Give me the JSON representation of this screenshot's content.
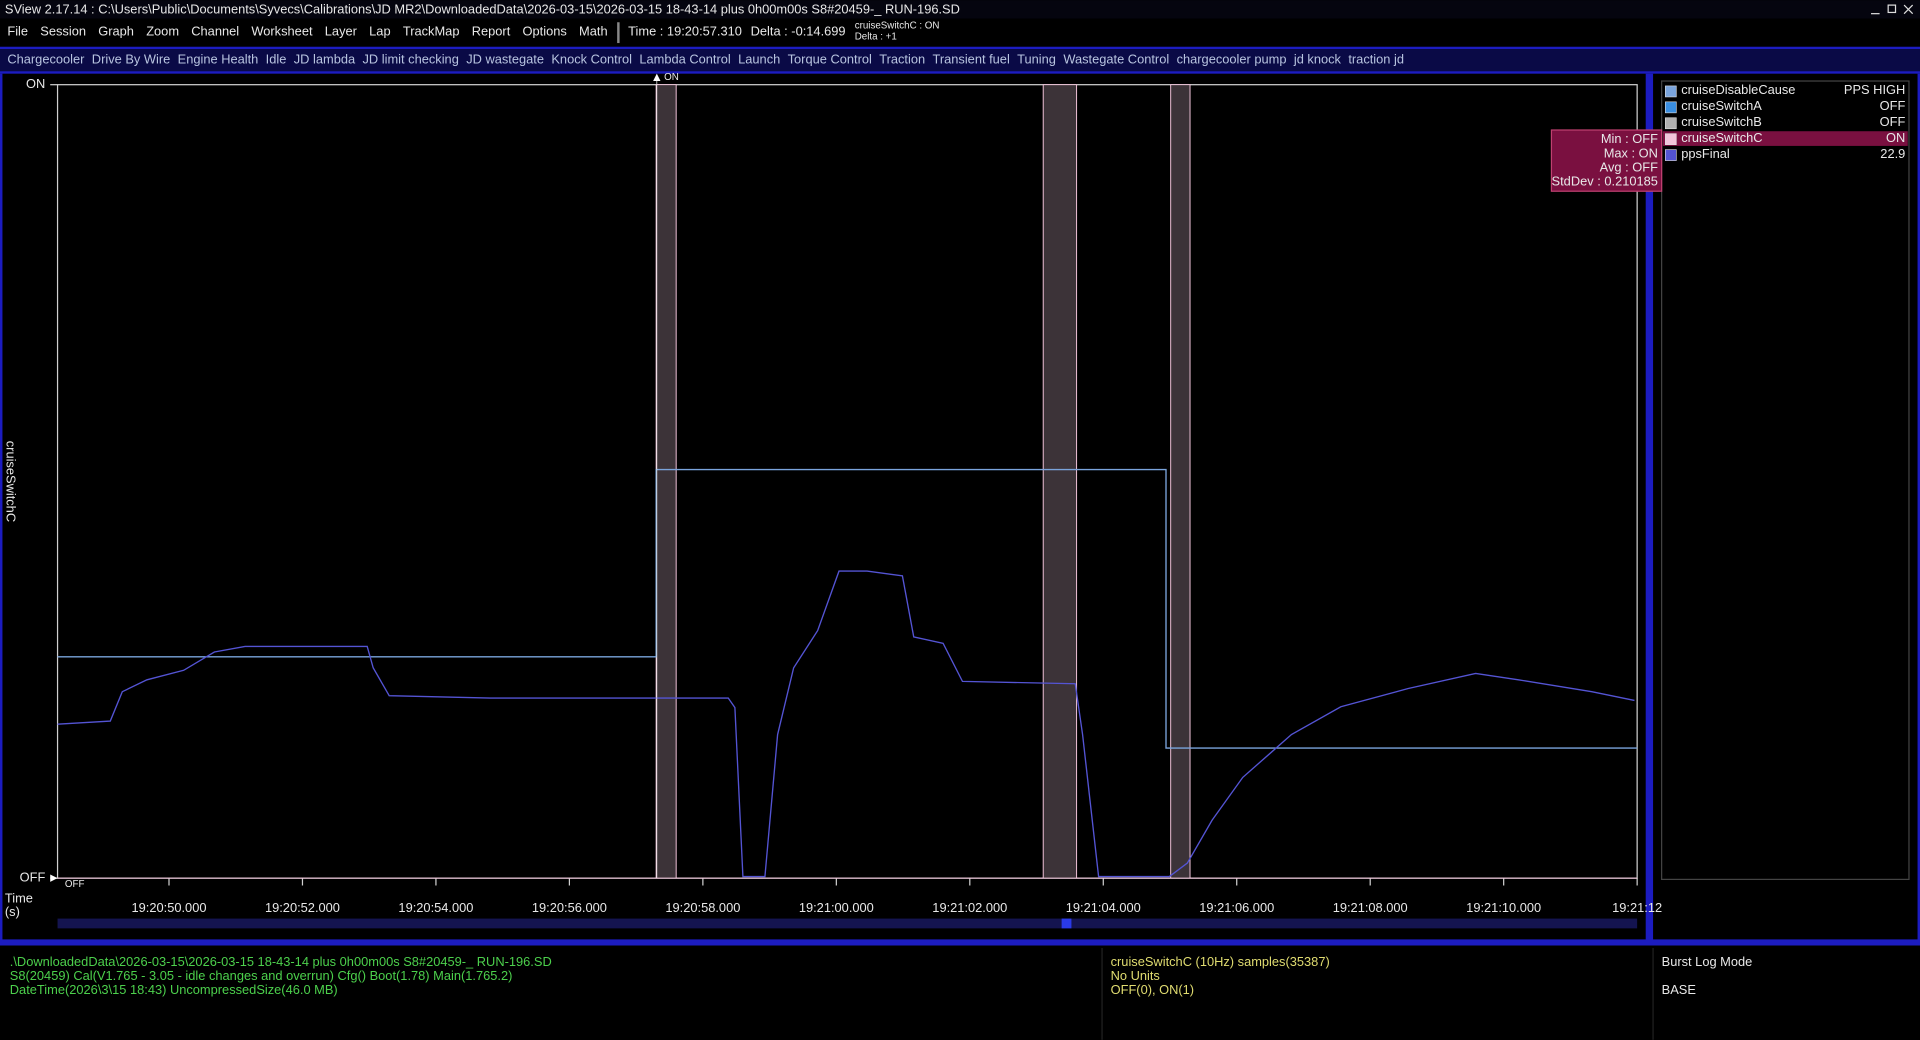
{
  "title_bar": "SView 2.17.14  :  C:\\Users\\Public\\Documents\\Syvecs\\Calibrations\\JD MR2\\DownloadedData\\2026-03-15\\2026-03-15 18-43-14 plus 0h00m00s S8#20459-_ RUN-196.SD",
  "menu": [
    "File",
    "Session",
    "Graph",
    "Zoom",
    "Channel",
    "Worksheet",
    "Layer",
    "Lap",
    "TrackMap",
    "Report",
    "Options",
    "Math"
  ],
  "time_readout": "Time : 19:20:57.310",
  "delta_readout": "Delta : -0:14.699",
  "cursor_info": [
    "cruiseSwitchC : ON",
    "Delta : +1"
  ],
  "tabs": [
    "Chargecooler",
    "Drive By Wire",
    "Engine Health",
    "Idle",
    "JD lambda",
    "JD limit checking",
    "JD wastegate",
    "Knock Control",
    "Lambda Control",
    "Launch",
    "Torque Control",
    "Traction",
    "Transient fuel",
    "Tuning",
    "Wastegate Control",
    "chargecooler pump",
    "jd knock",
    "traction jd"
  ],
  "chart_data": {
    "type": "line",
    "y_label": "cruiseSwitchC",
    "x_label": [
      "Time",
      "(s)"
    ],
    "cursor": 57.31,
    "cursor_label": "ON",
    "start_label": "OFF",
    "xlim": [
      48.33,
      72.0
    ],
    "xticks": [
      {
        "value": 50,
        "label": "19:20:50.000"
      },
      {
        "value": 52,
        "label": "19:20:52.000"
      },
      {
        "value": 54,
        "label": "19:20:54.000"
      },
      {
        "value": 56,
        "label": "19:20:56.000"
      },
      {
        "value": 58,
        "label": "19:20:58.000"
      },
      {
        "value": 60,
        "label": "19:21:00.000"
      },
      {
        "value": 62,
        "label": "19:21:02.000"
      },
      {
        "value": 64,
        "label": "19:21:04.000"
      },
      {
        "value": 66,
        "label": "19:21:06.000"
      },
      {
        "value": 68,
        "label": "19:21:08.000"
      },
      {
        "value": 70,
        "label": "19:21:10.000"
      },
      {
        "value": 72,
        "label": "19:21:12"
      }
    ],
    "ylim": [
      0,
      1
    ],
    "yticks": [
      {
        "value": 1,
        "label": "ON"
      },
      {
        "value": 0,
        "label": "OFF"
      }
    ],
    "series": [
      {
        "name": "cruiseDisableCause",
        "readout": "PPS HIGH",
        "color": "#7aa4dc",
        "x": [
          48.33,
          57.3,
          57.3,
          64.94,
          64.94,
          72.0
        ],
        "values": [
          0.279,
          0.279,
          0.515,
          0.515,
          0.164,
          0.164
        ]
      },
      {
        "name": "cruiseSwitchA",
        "readout": "OFF",
        "color": "#3a8ee0"
      },
      {
        "name": "cruiseSwitchB",
        "readout": "OFF",
        "color": "#b0b0b0"
      },
      {
        "name": "cruiseSwitchC",
        "readout": "ON",
        "color": "#f2c4da",
        "fill": "#3c3338",
        "x": [
          48.33,
          57.3,
          57.3,
          57.6,
          57.6,
          63.1,
          63.1,
          63.6,
          63.6,
          65.01,
          65.01,
          65.3,
          65.3,
          72.0
        ],
        "values": [
          0,
          0,
          1,
          1,
          0,
          0,
          1,
          1,
          0,
          0,
          1,
          1,
          0,
          0
        ]
      },
      {
        "name": "ppsFinal",
        "readout": "22.9",
        "color": "#5454d4",
        "x": [
          48.33,
          49.12,
          49.3,
          49.67,
          50.22,
          50.68,
          51.14,
          52.97,
          53.06,
          53.3,
          54.81,
          58.38,
          58.48,
          58.6,
          58.93,
          59.12,
          59.36,
          59.72,
          60.04,
          60.46,
          60.99,
          61.16,
          61.6,
          61.89,
          63.58,
          63.69,
          63.93,
          64.99,
          65.26,
          65.63,
          66.09,
          66.82,
          67.56,
          68.57,
          69.58,
          70.22,
          71.32,
          71.96
        ],
        "values": [
          0.194,
          0.198,
          0.235,
          0.25,
          0.262,
          0.285,
          0.292,
          0.292,
          0.265,
          0.23,
          0.227,
          0.227,
          0.215,
          0.002,
          0.002,
          0.181,
          0.265,
          0.312,
          0.387,
          0.387,
          0.381,
          0.304,
          0.296,
          0.248,
          0.245,
          0.181,
          0.002,
          0.002,
          0.019,
          0.073,
          0.127,
          0.181,
          0.216,
          0.239,
          0.258,
          0.25,
          0.235,
          0.224
        ]
      }
    ]
  },
  "stats": [
    "Min : OFF",
    "Max : ON",
    "Avg : OFF",
    "StdDev : 0.210185"
  ],
  "status_left": [
    ".\\DownloadedData\\2026-03-15\\2026-03-15 18-43-14 plus 0h00m00s S8#20459-_ RUN-196.SD",
    "S8(20459) Cal(V1.765 - 3.05 - idle changes and overrun) Cfg() Boot(1.78) Main(1.765.2)",
    "DateTime(2026\\3\\15 18:43) UncompressedSize(46.0 MB)"
  ],
  "status_mid": [
    "cruiseSwitchC (10Hz) samples(35387)",
    "No Units",
    "OFF(0), ON(1)"
  ],
  "status_right": [
    "Burst Log Mode",
    "BASE"
  ]
}
